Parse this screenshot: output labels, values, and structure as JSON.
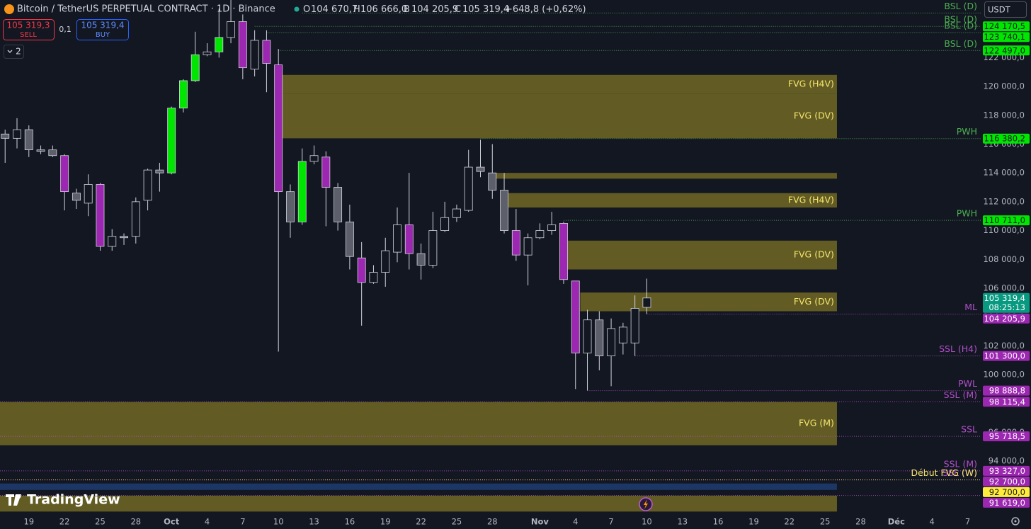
{
  "header": {
    "symbol": "Bitcoin / TetherUS PERPETUAL CONTRACT · 1D · Binance",
    "o_label": "O",
    "o": "104 670,7",
    "h_label": "H",
    "h": "106 666,0",
    "l_label": "B",
    "l": "104 205,9",
    "c_label": "C",
    "c": "105 319,4",
    "change": "+648,8 (+0,62%)",
    "sell_price": "105 319,3",
    "sell": "SELL",
    "spread": "0,1",
    "buy_price": "105 319,4",
    "buy": "BUY",
    "indicators": "2",
    "currency": "USDT",
    "brand": "TradingView"
  },
  "chart_data": {
    "type": "candlestick",
    "xlim": [
      -14.43,
      68.1
    ],
    "ylim": [
      90370,
      126000
    ],
    "xticks": [
      {
        "value": -12,
        "label": "19"
      },
      {
        "value": -9,
        "label": "22"
      },
      {
        "value": -6,
        "label": "25"
      },
      {
        "value": -3,
        "label": "28"
      },
      {
        "value": 0,
        "label": "Oct"
      },
      {
        "value": 3,
        "label": "4"
      },
      {
        "value": 6,
        "label": "7"
      },
      {
        "value": 9,
        "label": "10"
      },
      {
        "value": 12,
        "label": "13"
      },
      {
        "value": 15,
        "label": "16"
      },
      {
        "value": 18,
        "label": "19"
      },
      {
        "value": 21,
        "label": "22"
      },
      {
        "value": 24,
        "label": "25"
      },
      {
        "value": 27,
        "label": "28"
      },
      {
        "value": 31,
        "label": "Nov"
      },
      {
        "value": 34,
        "label": "4"
      },
      {
        "value": 37,
        "label": "7"
      },
      {
        "value": 40,
        "label": "10"
      },
      {
        "value": 43,
        "label": "13"
      },
      {
        "value": 46,
        "label": "16"
      },
      {
        "value": 49,
        "label": "19"
      },
      {
        "value": 52,
        "label": "22"
      },
      {
        "value": 55,
        "label": "25"
      },
      {
        "value": 58,
        "label": "28"
      },
      {
        "value": 61,
        "label": "Déc"
      },
      {
        "value": 64,
        "label": "4"
      },
      {
        "value": 67,
        "label": "7"
      }
    ],
    "yticks": [
      {
        "value": 94000,
        "label": "94 000,0"
      },
      {
        "value": 96000,
        "label": "96 000,0"
      },
      {
        "value": 98000,
        "label": "98 000,0"
      },
      {
        "value": 100000,
        "label": "100 000,0"
      },
      {
        "value": 102000,
        "label": "102 000,0"
      },
      {
        "value": 104000,
        "label": "104 000,0"
      },
      {
        "value": 106000,
        "label": "106 000,0"
      },
      {
        "value": 108000,
        "label": "108 000,0"
      },
      {
        "value": 110000,
        "label": "110 000,0"
      },
      {
        "value": 112000,
        "label": "112 000,0"
      },
      {
        "value": 114000,
        "label": "114 000,0"
      },
      {
        "value": 116000,
        "label": "116 000,0"
      },
      {
        "value": 118000,
        "label": "118 000,0"
      },
      {
        "value": 120000,
        "label": "120 000,0"
      },
      {
        "value": 122000,
        "label": "122 000,0"
      }
    ],
    "x": [
      -14,
      -13,
      -12,
      -11,
      -10,
      -9,
      -8,
      -7,
      -6,
      -5,
      -4,
      -3,
      -2,
      -1,
      0,
      1,
      2,
      3,
      4,
      5,
      6,
      7,
      8,
      9,
      10,
      11,
      12,
      13,
      14,
      15,
      16,
      17,
      18,
      19,
      20,
      21,
      22,
      23,
      24,
      25,
      26,
      27,
      28,
      29,
      30,
      31,
      32,
      33,
      34,
      35,
      36,
      37,
      38,
      39,
      40
    ],
    "open": [
      116700,
      116400,
      117000,
      115600,
      115600,
      115200,
      112600,
      111900,
      113200,
      108900,
      109600,
      109600,
      112100,
      114200,
      114000,
      118500,
      120400,
      122200,
      122400,
      123400,
      124500,
      121200,
      123200,
      121500,
      112700,
      110600,
      114800,
      115100,
      113000,
      110600,
      108100,
      106400,
      107100,
      108500,
      110400,
      108400,
      107600,
      110000,
      110900,
      111400,
      114400,
      114000,
      112800,
      110000,
      108300,
      109500,
      110000,
      110500,
      106500,
      101500,
      103800,
      101300,
      102200,
      102200,
      104670.7
    ],
    "high": [
      117000,
      117800,
      117300,
      115900,
      115900,
      115300,
      112900,
      113900,
      113300,
      110100,
      109800,
      112300,
      114300,
      114700,
      118600,
      120500,
      123800,
      123000,
      125400,
      126200,
      125000,
      123900,
      123900,
      122600,
      113200,
      115700,
      115900,
      115500,
      113300,
      111800,
      109200,
      107600,
      109500,
      111600,
      114000,
      109100,
      111300,
      112000,
      111800,
      115600,
      116300,
      116000,
      114000,
      111500,
      109800,
      110500,
      111300,
      110600,
      106500,
      104500,
      104400,
      103900,
      103600,
      105500,
      106666
    ],
    "low": [
      114700,
      115700,
      115100,
      115300,
      115100,
      111400,
      111500,
      111000,
      108600,
      108600,
      109000,
      109100,
      111400,
      112700,
      113900,
      118200,
      120300,
      122100,
      122000,
      123000,
      120500,
      120700,
      119600,
      101600,
      109500,
      110400,
      114600,
      110300,
      110000,
      107300,
      103400,
      106300,
      106100,
      107800,
      107300,
      106600,
      107400,
      109900,
      110600,
      111300,
      113700,
      112200,
      109800,
      107900,
      106200,
      109400,
      109700,
      106300,
      99000,
      98900,
      100300,
      99200,
      101400,
      101300,
      104205.9
    ],
    "close": [
      116400,
      117000,
      115600,
      115500,
      115200,
      112700,
      112100,
      113200,
      108900,
      109600,
      109500,
      112000,
      114200,
      114000,
      118500,
      120400,
      122200,
      122400,
      123400,
      124500,
      121300,
      123200,
      121600,
      112700,
      110600,
      114800,
      115200,
      113000,
      110600,
      108200,
      106400,
      107100,
      108600,
      110400,
      108400,
      107600,
      110000,
      110900,
      111500,
      114400,
      114100,
      112800,
      110000,
      108300,
      109500,
      110000,
      110400,
      106600,
      101500,
      103800,
      101300,
      103200,
      103300,
      104600,
      105319.4
    ],
    "colors": [
      "#5d606b",
      "#131722",
      "#5d606b",
      "#5d606b",
      "#5d606b",
      "#9c27b0",
      "#5d606b",
      "#131722",
      "#9c27b0",
      "#131722",
      "#5d606b",
      "#131722",
      "#131722",
      "#5d606b",
      "#00e600",
      "#00e600",
      "#00e600",
      "#131722",
      "#00e600",
      "#131722",
      "#9c27b0",
      "#131722",
      "#9c27b0",
      "#9c27b0",
      "#5d606b",
      "#00e600",
      "#131722",
      "#9c27b0",
      "#5d606b",
      "#5d606b",
      "#9c27b0",
      "#131722",
      "#131722",
      "#131722",
      "#9c27b0",
      "#5d606b",
      "#131722",
      "#131722",
      "#131722",
      "#131722",
      "#5d606b",
      "#5d606b",
      "#5d606b",
      "#9c27b0",
      "#131722",
      "#131722",
      "#131722",
      "#9c27b0",
      "#9c27b0",
      "#131722",
      "#5d606b",
      "#131722",
      "#131722",
      "#131722",
      "#131722"
    ],
    "outline": "#d1d4dc",
    "zone_color": "#6b6425",
    "zone_text_color": "#f5e46c",
    "zones": [
      {
        "name": "FVG (H4V)",
        "top": 120800,
        "bottom": 119500,
        "start": 9.3,
        "end": 56
      },
      {
        "name": "FVG (DV)",
        "top": 119500,
        "bottom": 116400,
        "start": 9.3,
        "end": 56
      },
      {
        "top": 114000,
        "bottom": 113600,
        "start": 27,
        "end": 56
      },
      {
        "name": "FVG (H4V)",
        "top": 112600,
        "bottom": 111600,
        "start": 28,
        "end": 56
      },
      {
        "name": "FVG (DV)",
        "top": 109300,
        "bottom": 107300,
        "start": 33.3,
        "end": 56
      },
      {
        "name": "FVG (DV)",
        "top": 105700,
        "bottom": 104400,
        "start": 34.4,
        "end": 56
      },
      {
        "name": "FVG (M)",
        "top": 98100,
        "bottom": 95100,
        "end": 56
      },
      {
        "top": 92450,
        "bottom": 92000,
        "end": 56,
        "color": "#1e3a6e"
      },
      {
        "top": 91600,
        "bottom": 90500,
        "end": 56
      }
    ],
    "levels": [
      {
        "name": "BSL (D)",
        "value": 125100,
        "start": 11,
        "color": "#4caf50"
      },
      {
        "name": "BSL (D)",
        "value": 124170.5,
        "value_label": "124 170,5",
        "start": 7,
        "color": "#4caf50",
        "tag_color": "#00e600",
        "tag_text_color": "#131722"
      },
      {
        "name": "BSL (D)",
        "value": 123740.1,
        "value_label": "123 740,1",
        "start": 8,
        "color": "#4caf50",
        "tag_color": "#00e600",
        "tag_text_color": "#131722"
      },
      {
        "name": "BSL (D)",
        "value": 122497.0,
        "value_label": "122 497,0",
        "start": 9,
        "color": "#4caf50",
        "tag_color": "#00e600",
        "tag_text_color": "#131722"
      },
      {
        "name": "PWH",
        "value": 116380.2,
        "value_label": "116 380,2",
        "start": 26,
        "color": "#4caf50",
        "tag_color": "#00e600",
        "tag_text_color": "#131722"
      },
      {
        "name": "PWH",
        "value": 110711.0,
        "value_label": "110 711,0",
        "start": 33,
        "color": "#4caf50",
        "tag_color": "#00e600",
        "tag_text_color": "#131722"
      },
      {
        "name": "ML",
        "value": 104205.9,
        "value_label": "104 205,9",
        "start": 40,
        "color": "#b04fc8",
        "tag_color": "#9c27b0",
        "tag_text_color": "#ffffff"
      },
      {
        "name": "SSL (H4)",
        "value": 101300.0,
        "value_label": "101 300,0",
        "start": 39,
        "color": "#b04fc8",
        "tag_color": "#9c27b0",
        "tag_text_color": "#ffffff"
      },
      {
        "name": "PWL",
        "value": 98888.8,
        "value_label": "98 888,8",
        "start": 35,
        "color": "#b04fc8",
        "tag_color": "#9c27b0",
        "tag_text_color": "#ffffff"
      },
      {
        "name": "SSL (M)",
        "value": 98115.4,
        "value_label": "98 115,4",
        "color": "#b04fc8",
        "tag_color": "#9c27b0",
        "tag_text_color": "#ffffff"
      },
      {
        "name": "SSL",
        "value": 95718.5,
        "value_label": "95 718,5",
        "color": "#b04fc8",
        "tag_color": "#9c27b0",
        "tag_text_color": "#ffffff"
      },
      {
        "name": "SSL (M)",
        "value": 93327.0,
        "value_label": "93 327,0",
        "color": "#b04fc8",
        "tag_color": "#9c27b0",
        "tag_text_color": "#ffffff"
      },
      {
        "name": "SSL (W)",
        "value": 92700.0,
        "value_label": "92 700,0",
        "color": "#b04fc8",
        "tag_color": "#9c27b0",
        "tag_text_color": "#ffffff"
      },
      {
        "name": "Début FVG (W)",
        "value": 92700.0,
        "value_label": "92 700,0",
        "color": "#f5e46c",
        "tag_color": "#ffeb3b",
        "tag_text_color": "#131722"
      },
      {
        "value": 91619.0,
        "value_label": "91 619,0",
        "color": "#b04fc8",
        "tag_color": "#9c27b0",
        "tag_text_color": "#ffffff"
      }
    ],
    "last_price": {
      "value": 105319.4,
      "label": "105 319,4",
      "countdown": "08:25:13",
      "color": "#089981"
    }
  }
}
